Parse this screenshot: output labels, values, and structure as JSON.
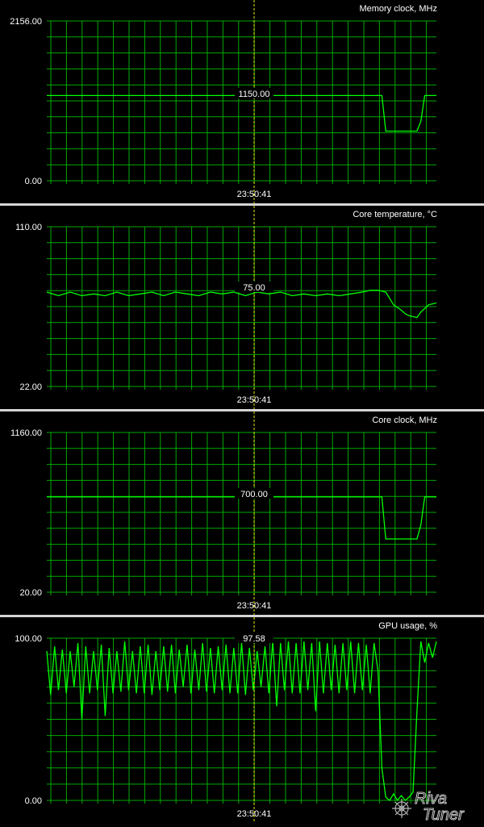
{
  "grid_color": "#00aa00",
  "line_color": "#00ff00",
  "cursor_color": "#e8e800",
  "background": "#000000",
  "cursor_time": "23:50:41",
  "logo_text": "Riva Tuner",
  "chart_data": [
    {
      "type": "line",
      "title": "Memory clock, MHz",
      "ymax_label": "2156.00",
      "ymin_label": "0.00",
      "ylim": [
        0,
        2156
      ],
      "cursor_value": "1150.00",
      "grid": true,
      "x": [
        0,
        86,
        87,
        88,
        93,
        94,
        95,
        96,
        97,
        100
      ],
      "values": [
        1150,
        1150,
        670,
        670,
        670,
        670,
        670,
        800,
        1150,
        1150
      ]
    },
    {
      "type": "line",
      "title": "Core temperature, °C",
      "ymax_label": "110.00",
      "ymin_label": "22.00",
      "ylim": [
        22,
        110
      ],
      "cursor_value": "75.00",
      "grid": true,
      "x": [
        0,
        3,
        6,
        9,
        12,
        15,
        18,
        21,
        24,
        27,
        30,
        33,
        36,
        39,
        42,
        45,
        48,
        51,
        54,
        57,
        60,
        63,
        66,
        69,
        72,
        75,
        78,
        81,
        83,
        85,
        87,
        89,
        91,
        92,
        93,
        95,
        96,
        97,
        98,
        100
      ],
      "values": [
        74,
        72,
        74,
        72,
        73,
        72,
        74,
        72,
        73,
        74,
        72,
        74,
        73,
        72,
        74,
        73,
        74,
        72,
        74,
        73,
        74,
        72,
        73,
        72,
        73,
        72,
        73,
        74,
        75,
        75,
        74,
        67,
        64,
        62,
        61,
        60,
        63,
        65,
        67,
        68
      ]
    },
    {
      "type": "line",
      "title": "Core clock, MHz",
      "ymax_label": "1160.00",
      "ymin_label": "20.00",
      "ylim": [
        20,
        1160
      ],
      "cursor_value": "700.00",
      "grid": true,
      "x": [
        0,
        86,
        87,
        88,
        93,
        94,
        95,
        96,
        97,
        100
      ],
      "values": [
        700,
        700,
        400,
        400,
        400,
        400,
        400,
        500,
        700,
        700
      ]
    },
    {
      "type": "line",
      "title": "GPU usage, %",
      "ymax_label": "100.00",
      "ymin_label": "0.00",
      "ylim": [
        0,
        100
      ],
      "cursor_value": "97.58",
      "grid": true,
      "x": [
        0,
        1,
        2,
        3,
        4,
        5,
        6,
        7,
        8,
        9,
        10,
        11,
        12,
        13,
        14,
        15,
        16,
        17,
        18,
        19,
        20,
        21,
        22,
        23,
        24,
        25,
        26,
        27,
        28,
        29,
        30,
        31,
        32,
        33,
        34,
        35,
        36,
        37,
        38,
        39,
        40,
        41,
        42,
        43,
        44,
        45,
        46,
        47,
        48,
        49,
        50,
        51,
        52,
        53,
        54,
        55,
        56,
        57,
        58,
        59,
        60,
        61,
        62,
        63,
        64,
        65,
        66,
        67,
        68,
        69,
        70,
        71,
        72,
        73,
        74,
        75,
        76,
        77,
        78,
        79,
        80,
        81,
        82,
        83,
        84,
        85,
        86,
        87,
        88,
        89,
        90,
        91,
        92,
        93,
        94,
        95,
        96,
        97,
        98,
        99,
        100
      ],
      "values": [
        92,
        65,
        95,
        68,
        93,
        66,
        92,
        70,
        97,
        50,
        95,
        66,
        92,
        68,
        96,
        52,
        94,
        66,
        92,
        67,
        98,
        68,
        92,
        66,
        95,
        66,
        96,
        65,
        92,
        68,
        95,
        67,
        96,
        66,
        93,
        70,
        96,
        66,
        93,
        68,
        97,
        67,
        94,
        66,
        95,
        68,
        96,
        66,
        94,
        66,
        97,
        65,
        94,
        68,
        92,
        70,
        95,
        66,
        98,
        58,
        97,
        68,
        98,
        66,
        97,
        66,
        98,
        68,
        97,
        55,
        98,
        66,
        97,
        68,
        96,
        66,
        97,
        68,
        98,
        66,
        97,
        68,
        96,
        66,
        97,
        80,
        20,
        2,
        0,
        4,
        0,
        3,
        0,
        2,
        5,
        55,
        98,
        85,
        97,
        88,
        98
      ]
    }
  ]
}
